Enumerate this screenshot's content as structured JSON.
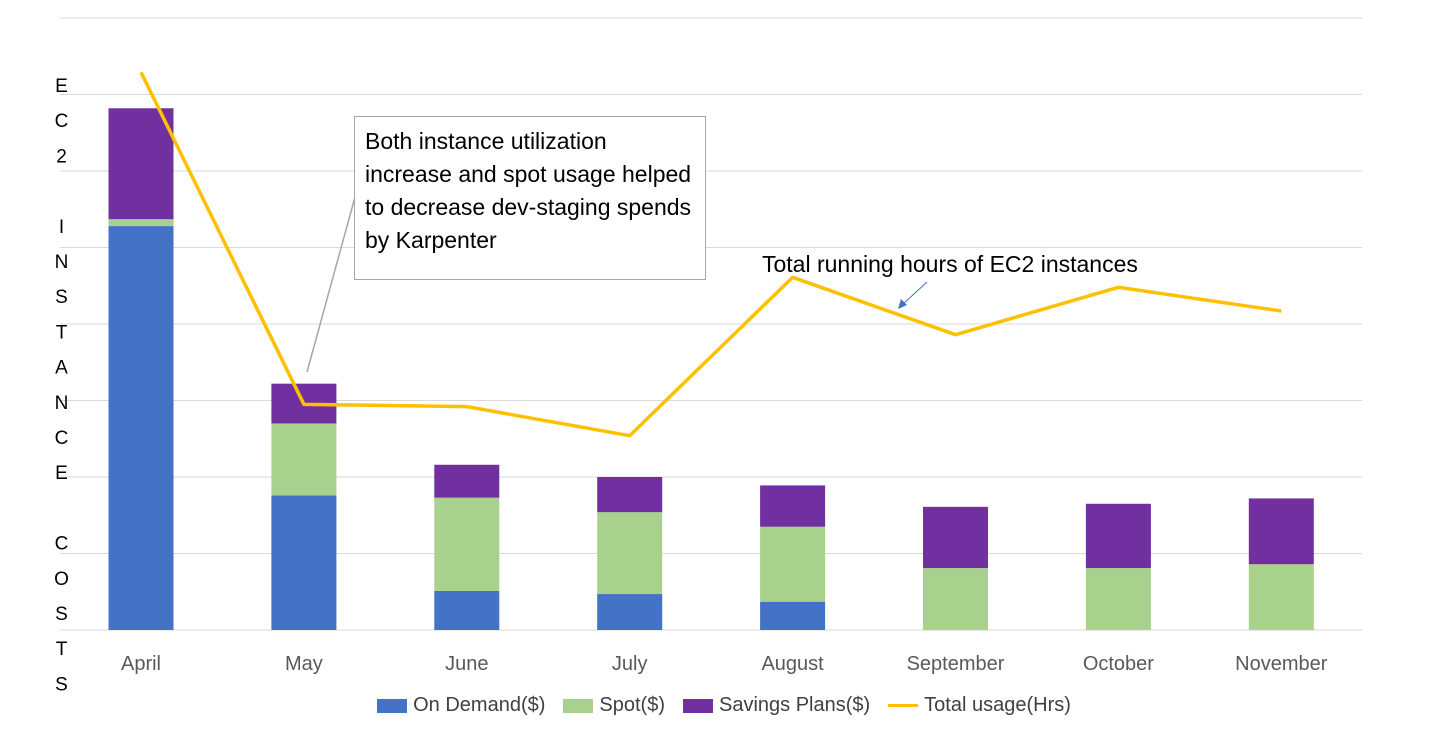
{
  "chart_data": {
    "type": "bar",
    "stacked": true,
    "categories": [
      "April",
      "May",
      "June",
      "July",
      "August",
      "September",
      "October",
      "November"
    ],
    "ylabel": "EC2 INSTANCE COSTS",
    "ylim": [
      0,
      8
    ],
    "grid": true,
    "legend_position": "bottom",
    "series": [
      {
        "name": "On Demand($)",
        "type": "bar",
        "color": "#4472c4",
        "values": [
          5.28,
          1.76,
          0.51,
          0.47,
          0.37,
          0,
          0,
          0
        ]
      },
      {
        "name": "Spot($)",
        "type": "bar",
        "color": "#a9d18e",
        "values": [
          0.09,
          0.94,
          1.22,
          1.07,
          0.98,
          0.81,
          0.81,
          0.86
        ]
      },
      {
        "name": "Savings Plans($)",
        "type": "bar",
        "color": "#7030a0",
        "values": [
          1.45,
          0.52,
          0.43,
          0.46,
          0.54,
          0.8,
          0.84,
          0.86
        ]
      },
      {
        "name": "Total usage(Hrs)",
        "type": "line",
        "color": "#ffc000",
        "values": [
          7.29,
          2.95,
          2.92,
          2.54,
          4.61,
          3.86,
          4.48,
          4.17
        ]
      }
    ],
    "annotations": [
      "Both instance utilization increase and spot usage helped to decrease dev-staging spends by Karpenter",
      "Total running hours of EC2 instances"
    ]
  }
}
